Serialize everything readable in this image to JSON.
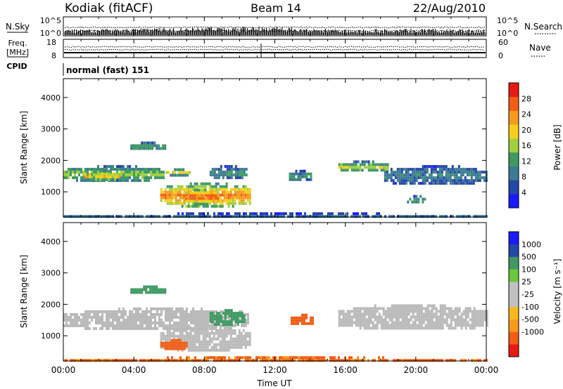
{
  "header": {
    "station": "Kodiak (fitACF)",
    "beam": "Beam 14",
    "date": "22/Aug/2010"
  },
  "top_panels": {
    "nsky_label": "N.Sky",
    "nsearch_label": "N.Search",
    "nsky_ticks": [
      "10^5",
      "10^0"
    ],
    "nsearch_ticks": [
      "10^5",
      "10^0"
    ],
    "freq_label_1": "Freq.",
    "freq_label_2": "[MHz]",
    "freq_ticks": [
      "18",
      "8"
    ],
    "nave_label": "Nave",
    "nave_ticks": [
      "60",
      "0"
    ],
    "cpid_label": "CPID",
    "cpid_value": "normal (fast) 151"
  },
  "colors": {
    "power_scale": [
      "#1a1aff",
      "#2547a8",
      "#3c7b94",
      "#3f9a62",
      "#9ed040",
      "#f4cf1c",
      "#f59a1b",
      "#f25e16",
      "#e81a12"
    ],
    "velocity_scale": [
      "#e81a12",
      "#f25e16",
      "#f59a1b",
      "#f7b71e",
      "#c0c0c0",
      "#c0c0c0",
      "#6ac93b",
      "#3f9a62",
      "#2547a8",
      "#1a1aff"
    ],
    "ground_scatter": "#b9b9b9"
  },
  "chart_data": [
    {
      "type": "heatmap",
      "name": "power",
      "ylabel": "Slant Range [km]",
      "yticks": [
        1000,
        2000,
        3000,
        4000
      ],
      "ylim": [
        200,
        4600
      ],
      "xlim": [
        0,
        24
      ],
      "colorbar_label": "Power [dB]",
      "colorbar_ticks": [
        4,
        8,
        12,
        16,
        20,
        24,
        28
      ],
      "colorbar_range": [
        0,
        32
      ],
      "regions": [
        {
          "t0": 0.0,
          "t1": 5.8,
          "r0": 1350,
          "r1": 1850,
          "v": 16
        },
        {
          "t0": 1.2,
          "t1": 3.2,
          "r0": 1400,
          "r1": 1700,
          "v": 22
        },
        {
          "t0": 5.5,
          "t1": 10.6,
          "r0": 550,
          "r1": 1300,
          "v": 26
        },
        {
          "t0": 6.8,
          "t1": 8.8,
          "r0": 650,
          "r1": 1100,
          "v": 29
        },
        {
          "t0": 8.3,
          "t1": 10.4,
          "r0": 1450,
          "r1": 1850,
          "v": 12
        },
        {
          "t0": 3.8,
          "t1": 5.8,
          "r0": 2350,
          "r1": 2600,
          "v": 13
        },
        {
          "t0": 5.8,
          "t1": 7.2,
          "r0": 1550,
          "r1": 1750,
          "v": 19
        },
        {
          "t0": 12.8,
          "t1": 14.0,
          "r0": 1350,
          "r1": 1700,
          "v": 12
        },
        {
          "t0": 15.6,
          "t1": 18.4,
          "r0": 1650,
          "r1": 2000,
          "v": 17
        },
        {
          "t0": 18.2,
          "t1": 24.0,
          "r0": 1250,
          "r1": 1850,
          "v": 10
        },
        {
          "t0": 19.5,
          "t1": 20.5,
          "r0": 650,
          "r1": 900,
          "v": 13
        },
        {
          "t0": 0.0,
          "t1": 24.0,
          "r0": 200,
          "r1": 350,
          "v": 9
        }
      ]
    },
    {
      "type": "heatmap",
      "name": "velocity",
      "xlabel": "Time UT",
      "ylabel": "Slant Range [km]",
      "yticks": [
        1000,
        2000,
        3000,
        4000
      ],
      "ylim": [
        200,
        4600
      ],
      "xlim": [
        0,
        24
      ],
      "xticks": [
        "00:00",
        "04:00",
        "08:00",
        "12:00",
        "16:00",
        "20:00",
        "00:00"
      ],
      "colorbar_label": "Velocity [m s⁻¹]",
      "colorbar_ticks": [
        "1000",
        "500",
        "100",
        "25",
        "-25",
        "-100",
        "-500",
        "-1000"
      ],
      "regions": [
        {
          "t0": 0.0,
          "t1": 10.5,
          "r0": 1200,
          "r1": 1900,
          "v": "gs"
        },
        {
          "t0": 5.5,
          "t1": 10.6,
          "r0": 550,
          "r1": 1300,
          "v": "gs"
        },
        {
          "t0": 5.5,
          "t1": 7.0,
          "r0": 600,
          "r1": 900,
          "v": -150
        },
        {
          "t0": 8.3,
          "t1": 10.3,
          "r0": 1350,
          "r1": 1850,
          "v": 200
        },
        {
          "t0": 3.8,
          "t1": 5.8,
          "r0": 2350,
          "r1": 2600,
          "v": 150
        },
        {
          "t0": 12.9,
          "t1": 14.2,
          "r0": 1350,
          "r1": 1700,
          "v": -250
        },
        {
          "t0": 15.6,
          "t1": 24.0,
          "r0": 1200,
          "r1": 2000,
          "v": "gs"
        },
        {
          "t0": 0.0,
          "t1": 24.0,
          "r0": 200,
          "r1": 350,
          "v": -120
        }
      ]
    }
  ]
}
